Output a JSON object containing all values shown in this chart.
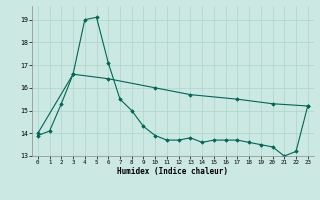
{
  "xlabel": "Humidex (Indice chaleur)",
  "ylabel": "",
  "background_color": "#cbe8e2",
  "grid_color": "#b0d8d0",
  "line_color": "#006655",
  "xlim": [
    -0.5,
    23.5
  ],
  "ylim": [
    13,
    19.6
  ],
  "yticks": [
    13,
    14,
    15,
    16,
    17,
    18,
    19
  ],
  "xticks": [
    0,
    1,
    2,
    3,
    4,
    5,
    6,
    7,
    8,
    9,
    10,
    11,
    12,
    13,
    14,
    15,
    16,
    17,
    18,
    19,
    20,
    21,
    22,
    23
  ],
  "line1_x": [
    0,
    1,
    2,
    3,
    4,
    5,
    6,
    7,
    8,
    9,
    10,
    11,
    12,
    13,
    14,
    15,
    16,
    17,
    18,
    19,
    20,
    21,
    22,
    23
  ],
  "line1_y": [
    13.9,
    14.1,
    15.3,
    16.6,
    19.0,
    19.1,
    17.1,
    15.5,
    15.0,
    14.3,
    13.9,
    13.7,
    13.7,
    13.8,
    13.6,
    13.7,
    13.7,
    13.7,
    13.6,
    13.5,
    13.4,
    13.0,
    13.2,
    15.2
  ],
  "line2_x": [
    0,
    3,
    6,
    10,
    13,
    17,
    20,
    23
  ],
  "line2_y": [
    14.0,
    16.6,
    16.4,
    16.0,
    15.7,
    15.5,
    15.3,
    15.2
  ]
}
